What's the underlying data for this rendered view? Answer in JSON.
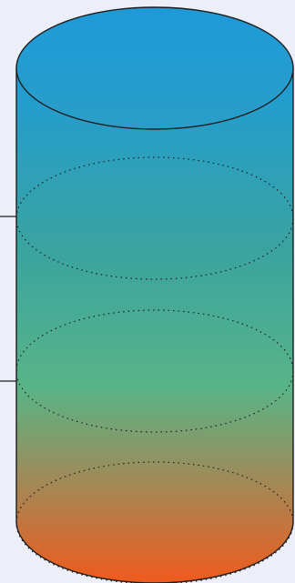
{
  "diagram": {
    "shape": "cylinder",
    "gradient_stops": [
      {
        "offset": 0.0,
        "color": "#1e9cd8"
      },
      {
        "offset": 0.35,
        "color": "#3aa3a0"
      },
      {
        "offset": 0.62,
        "color": "#58b487"
      },
      {
        "offset": 0.8,
        "color": "#a08a58"
      },
      {
        "offset": 1.0,
        "color": "#f05a1c"
      }
    ],
    "outline_color": "#1e1e1e",
    "dotted_color": "#1e1e1e",
    "pointer_color": "#1e1e1e",
    "background": "#eceef8",
    "section_count": 3
  }
}
